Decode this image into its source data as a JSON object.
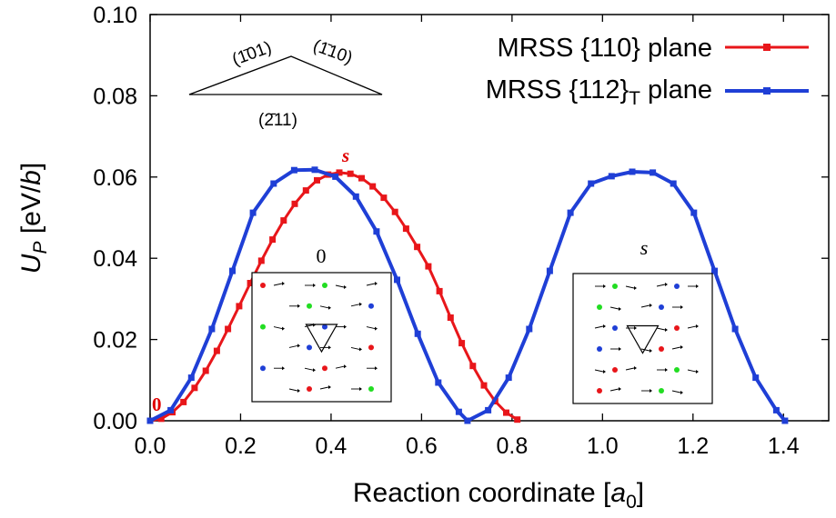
{
  "chart_data": {
    "type": "line",
    "title": "",
    "xlabel": "Reaction coordinate",
    "xlabel_unit": "a",
    "xlabel_unit_sub": "0",
    "ylabel_symbol": "U",
    "ylabel_sub": "P",
    "ylabel_unit": "eV/",
    "ylabel_unit_italic": "b",
    "xlim": [
      0.0,
      1.5
    ],
    "ylim": [
      0.0,
      0.1
    ],
    "xticks": [
      "0.0",
      "0.2",
      "0.4",
      "0.6",
      "0.8",
      "1.0",
      "1.2",
      "1.4"
    ],
    "yticks": [
      "0.00",
      "0.02",
      "0.04",
      "0.06",
      "0.08",
      "0.10"
    ],
    "grid": false,
    "legend_position": "top-right",
    "series": [
      {
        "name": "MRSS {110} plane",
        "legend": {
          "prefix": "MRSS {110} plane",
          "sub": "",
          "suffix": ""
        },
        "color": "#e8161a",
        "x": [
          0.0,
          0.0246,
          0.0492,
          0.0738,
          0.0984,
          0.123,
          0.1476,
          0.1722,
          0.1968,
          0.2214,
          0.246,
          0.2706,
          0.2952,
          0.3198,
          0.3444,
          0.369,
          0.3936,
          0.4182,
          0.4428,
          0.4674,
          0.492,
          0.5166,
          0.5412,
          0.5658,
          0.5904,
          0.615,
          0.6396,
          0.6642,
          0.6888,
          0.7134,
          0.738,
          0.7626,
          0.7872,
          0.8118
        ],
        "y": [
          0.0,
          0.0005,
          0.0021,
          0.0046,
          0.0081,
          0.0123,
          0.0172,
          0.0226,
          0.0282,
          0.0339,
          0.0394,
          0.0446,
          0.0493,
          0.0534,
          0.0567,
          0.0592,
          0.0606,
          0.0611,
          0.0608,
          0.0597,
          0.0577,
          0.0549,
          0.0514,
          0.0473,
          0.0428,
          0.038,
          0.0319,
          0.0254,
          0.0191,
          0.0135,
          0.0087,
          0.0048,
          0.002,
          0.0003
        ]
      },
      {
        "name": "MRSS {112}T plane",
        "legend": {
          "prefix": "MRSS {112}",
          "sub": "T",
          "suffix": " plane"
        },
        "color": "#1f3fd6",
        "x": [
          0.0,
          0.0455,
          0.091,
          0.1365,
          0.182,
          0.2275,
          0.273,
          0.3185,
          0.364,
          0.4095,
          0.455,
          0.5005,
          0.546,
          0.5915,
          0.637,
          0.6825,
          0.7016,
          0.7471,
          0.7926,
          0.8381,
          0.8836,
          0.9291,
          0.9746,
          1.0201,
          1.0656,
          1.1111,
          1.1566,
          1.2021,
          1.2476,
          1.2931,
          1.3386,
          1.3841,
          1.4032
        ],
        "y": [
          0.0,
          0.0026,
          0.0106,
          0.0226,
          0.0369,
          0.0512,
          0.0584,
          0.0617,
          0.0618,
          0.0601,
          0.0552,
          0.0466,
          0.0347,
          0.0214,
          0.0094,
          0.0022,
          0.0,
          0.0026,
          0.0106,
          0.0226,
          0.0369,
          0.0512,
          0.0584,
          0.0602,
          0.0613,
          0.0611,
          0.0584,
          0.0512,
          0.0369,
          0.0226,
          0.0106,
          0.0026,
          0.0
        ]
      }
    ],
    "annotations": {
      "zero_label": "0",
      "s_label": "s",
      "miller_left": "(1̄01)",
      "miller_right": "(1̄10)",
      "miller_bottom": "(2̄11)",
      "inset_left_label": "0",
      "inset_right_label": "s"
    }
  }
}
